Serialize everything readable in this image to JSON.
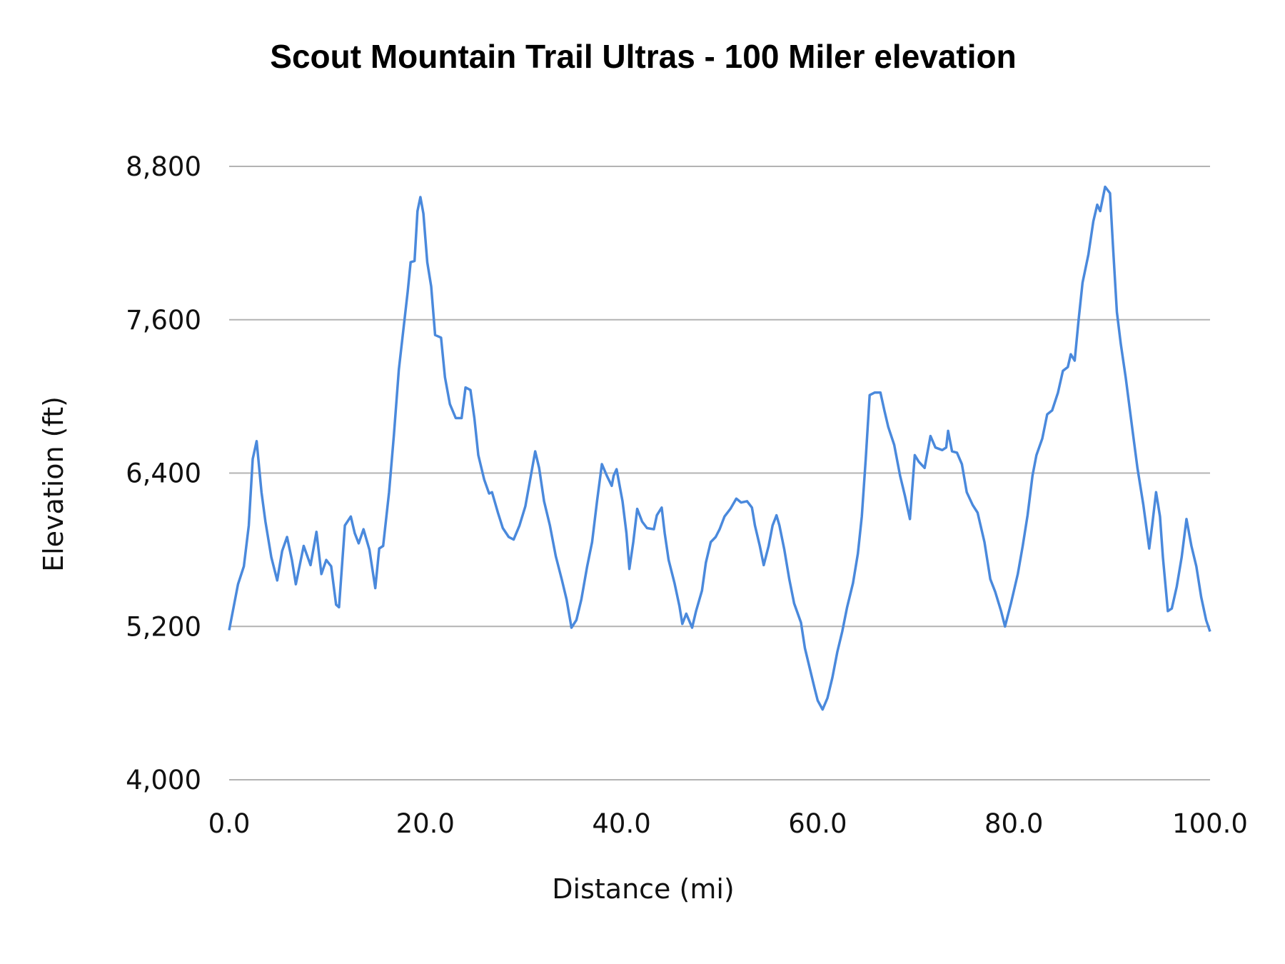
{
  "chart_data": {
    "type": "line",
    "title": "Scout Mountain Trail Ultras - 100 Miler elevation",
    "xlabel": "Distance (mi)",
    "ylabel": "Elevation (ft)",
    "xlim": [
      0,
      100
    ],
    "ylim": [
      4000,
      8800
    ],
    "x_ticks": [
      "0.0",
      "20.0",
      "40.0",
      "60.0",
      "80.0",
      "100.0"
    ],
    "x_tick_values": [
      0,
      20,
      40,
      60,
      80,
      100
    ],
    "y_ticks": [
      "4,000",
      "5,200",
      "6,400",
      "7,600",
      "8,800"
    ],
    "y_tick_values": [
      4000,
      5200,
      6400,
      7600,
      8800
    ],
    "grid": "horizontal",
    "line_color": "#4a89dc",
    "series": [
      {
        "x": [
          0.0,
          0.9,
          1.5,
          2.0,
          2.4,
          2.8,
          3.3,
          3.7,
          4.3,
          4.9,
          5.4,
          5.9,
          6.4,
          6.8,
          7.6,
          8.3,
          8.9,
          9.4,
          9.9,
          10.4,
          10.9,
          11.2,
          11.8,
          12.4,
          12.8,
          13.2,
          13.7,
          14.3,
          14.9,
          15.3,
          15.7,
          16.3,
          16.8,
          17.3,
          17.8,
          18.2,
          18.5,
          18.9,
          19.2,
          19.5,
          19.8,
          20.2,
          20.6,
          21.0,
          21.6,
          22.0,
          22.5,
          23.1,
          23.7,
          24.1,
          24.6,
          25.0,
          25.4,
          26.0,
          26.5,
          26.8,
          27.4,
          27.9,
          28.5,
          29.0,
          29.6,
          30.2,
          30.6,
          31.2,
          31.6,
          32.1,
          32.7,
          33.3,
          33.9,
          34.4,
          34.9,
          35.4,
          35.9,
          36.5,
          37.0,
          37.5,
          38.0,
          38.5,
          39.0,
          39.2,
          39.5,
          40.1,
          40.5,
          40.8,
          41.2,
          41.6,
          42.1,
          42.6,
          43.3,
          43.6,
          44.1,
          44.4,
          44.8,
          45.4,
          45.9,
          46.2,
          46.6,
          47.2,
          47.6,
          48.2,
          48.6,
          49.1,
          49.6,
          50.0,
          50.5,
          51.1,
          51.7,
          52.2,
          52.8,
          53.3,
          53.6,
          54.1,
          54.5,
          55.0,
          55.4,
          55.8,
          56.1,
          56.6,
          57.1,
          57.6,
          58.3,
          58.7,
          59.2,
          59.7,
          60.0,
          60.5,
          61.0,
          61.5,
          62.0,
          62.5,
          63.0,
          63.6,
          64.1,
          64.5,
          64.9,
          65.3,
          65.8,
          66.4,
          66.8,
          67.2,
          67.8,
          68.4,
          68.9,
          69.4,
          69.9,
          70.3,
          70.9,
          71.5,
          72.0,
          72.7,
          73.1,
          73.3,
          73.7,
          74.2,
          74.7,
          75.2,
          75.8,
          76.3,
          77.0,
          77.6,
          78.1,
          78.7,
          79.1,
          79.7,
          80.4,
          80.9,
          81.4,
          81.9,
          82.3,
          82.9,
          83.4,
          83.9,
          84.5,
          85.0,
          85.5,
          85.8,
          86.2,
          86.6,
          87.0,
          87.6,
          88.1,
          88.5,
          88.8,
          89.3,
          89.8,
          90.1,
          90.5,
          90.9,
          91.4,
          92.1,
          92.6,
          93.2,
          93.8,
          94.1,
          94.5,
          94.9,
          95.2,
          95.7,
          96.1,
          96.6,
          97.1,
          97.6,
          98.1,
          98.6,
          99.1,
          99.6,
          100.0
        ],
        "y": [
          5170,
          5530,
          5670,
          5990,
          6510,
          6650,
          6250,
          6020,
          5740,
          5560,
          5790,
          5900,
          5720,
          5530,
          5830,
          5680,
          5940,
          5610,
          5720,
          5670,
          5370,
          5350,
          5990,
          6060,
          5930,
          5850,
          5960,
          5800,
          5500,
          5810,
          5830,
          6250,
          6700,
          7210,
          7550,
          7820,
          8050,
          8060,
          8450,
          8560,
          8430,
          8050,
          7860,
          7480,
          7460,
          7150,
          6940,
          6830,
          6830,
          7070,
          7050,
          6830,
          6540,
          6350,
          6240,
          6250,
          6090,
          5970,
          5900,
          5880,
          5990,
          6140,
          6310,
          6570,
          6440,
          6180,
          5990,
          5750,
          5570,
          5410,
          5190,
          5250,
          5410,
          5670,
          5860,
          6180,
          6470,
          6380,
          6300,
          6380,
          6430,
          6180,
          5930,
          5650,
          5860,
          6120,
          6020,
          5970,
          5960,
          6070,
          6130,
          5930,
          5720,
          5540,
          5360,
          5220,
          5300,
          5190,
          5320,
          5480,
          5700,
          5860,
          5900,
          5960,
          6060,
          6120,
          6200,
          6170,
          6180,
          6130,
          5990,
          5830,
          5680,
          5830,
          5990,
          6070,
          5990,
          5800,
          5570,
          5380,
          5230,
          5030,
          4870,
          4710,
          4620,
          4550,
          4640,
          4800,
          5000,
          5160,
          5350,
          5540,
          5770,
          6060,
          6510,
          7010,
          7030,
          7030,
          6890,
          6760,
          6620,
          6380,
          6220,
          6040,
          6540,
          6490,
          6440,
          6690,
          6600,
          6580,
          6600,
          6730,
          6570,
          6560,
          6470,
          6250,
          6150,
          6090,
          5860,
          5570,
          5470,
          5320,
          5200,
          5380,
          5610,
          5830,
          6070,
          6380,
          6540,
          6670,
          6860,
          6890,
          7030,
          7200,
          7230,
          7330,
          7280,
          7600,
          7890,
          8110,
          8370,
          8500,
          8450,
          8640,
          8590,
          8180,
          7660,
          7410,
          7150,
          6730,
          6440,
          6150,
          5810,
          5990,
          6250,
          6060,
          5740,
          5320,
          5340,
          5510,
          5740,
          6040,
          5830,
          5670,
          5430,
          5250,
          5160
        ]
      }
    ]
  }
}
